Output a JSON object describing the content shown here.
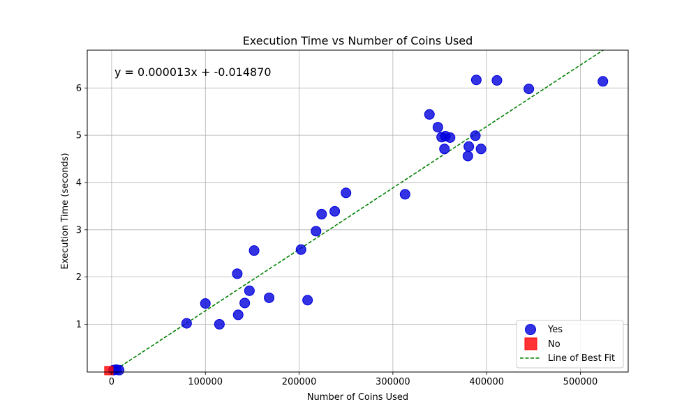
{
  "chart_data": {
    "type": "scatter",
    "title": "Execution Time vs Number of Coins Used",
    "xlabel": "Number of Coins Used",
    "ylabel": "Execution Time (seconds)",
    "xlim": [
      -26000,
      551000
    ],
    "ylim": [
      -0.01,
      6.8
    ],
    "x_ticks": [
      0,
      100000,
      200000,
      300000,
      400000,
      500000
    ],
    "y_ticks": [
      1,
      2,
      3,
      4,
      5,
      6
    ],
    "grid": true,
    "legend_position": "bottom-right",
    "annotation": "y = 0.000013x + -0.014870",
    "series": [
      {
        "name": "Yes",
        "marker": "circle",
        "color": "#0000dd",
        "points": [
          [
            2000,
            0.03
          ],
          [
            5000,
            0.04
          ],
          [
            8000,
            0.03
          ],
          [
            80000,
            1.02
          ],
          [
            100000,
            1.44
          ],
          [
            115000,
            1.0
          ],
          [
            134000,
            2.07
          ],
          [
            135000,
            1.2
          ],
          [
            142000,
            1.45
          ],
          [
            147000,
            1.71
          ],
          [
            152000,
            2.56
          ],
          [
            168000,
            1.56
          ],
          [
            202000,
            2.58
          ],
          [
            209000,
            1.51
          ],
          [
            218000,
            2.97
          ],
          [
            224000,
            3.33
          ],
          [
            238000,
            3.39
          ],
          [
            250000,
            3.78
          ],
          [
            313000,
            3.75
          ],
          [
            339000,
            5.44
          ],
          [
            348000,
            5.17
          ],
          [
            352000,
            4.96
          ],
          [
            355000,
            4.71
          ],
          [
            356000,
            4.98
          ],
          [
            361000,
            4.95
          ],
          [
            380000,
            4.56
          ],
          [
            381000,
            4.76
          ],
          [
            388000,
            4.99
          ],
          [
            389000,
            6.17
          ],
          [
            394000,
            4.71
          ],
          [
            411000,
            6.16
          ],
          [
            445000,
            5.98
          ],
          [
            524000,
            6.14
          ]
        ]
      },
      {
        "name": "No",
        "marker": "square",
        "color": "#ff0000",
        "points": [
          [
            -3000,
            0.02
          ]
        ]
      }
    ],
    "fit_line": {
      "name": "Line of Best Fit",
      "slope": 1.3e-05,
      "intercept": -0.01487,
      "color": "#008000"
    }
  }
}
